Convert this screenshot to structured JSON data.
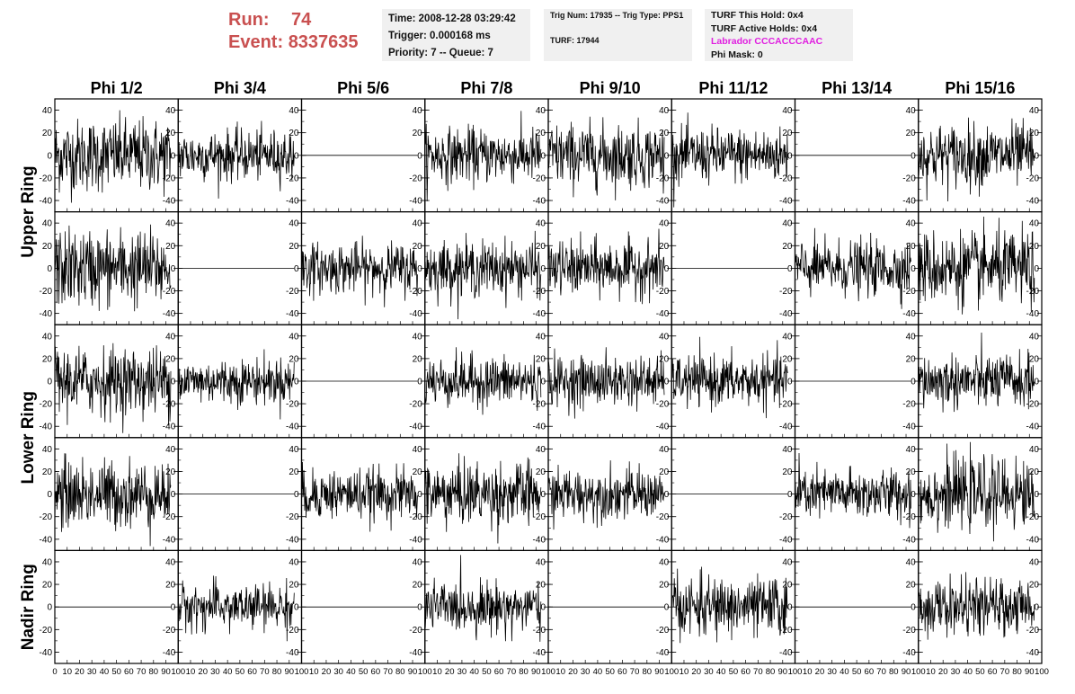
{
  "run": {
    "run_label": "Run:",
    "run_value": "74",
    "event_label": "Event:",
    "event_value": "8337635"
  },
  "header_box1": {
    "time": "Time: 2008-12-28 03:29:42",
    "trigger": "Trigger: 0.000168 ms",
    "priority": "Priority: 7 -- Queue: 7"
  },
  "header_box2": {
    "trig": "Trig Num: 17935 -- Trig Type: PPS1",
    "turf": "TURF: 17944"
  },
  "header_box3": {
    "hold": "TURF This Hold: 0x4",
    "active": "TURF Active Holds: 0x4",
    "labrador": "Labrador CCCACCCAAC",
    "phimask": "Phi Mask: 0"
  },
  "colors": {
    "accent": "#c95050",
    "labrador": "#e020e0",
    "panel_bg": "#f0f0f0",
    "trace": "#000000"
  },
  "chart_data": {
    "type": "line",
    "columns": [
      "Phi 1/2",
      "Phi 3/4",
      "Phi 5/6",
      "Phi 7/8",
      "Phi 9/10",
      "Phi 11/12",
      "Phi 13/14",
      "Phi 15/16"
    ],
    "ring_labels": [
      {
        "text": "Upper Ring",
        "rows": [
          0,
          1
        ]
      },
      {
        "text": "Lower Ring",
        "rows": [
          2,
          3
        ]
      },
      {
        "text": "Nadir Ring",
        "rows": [
          4
        ]
      }
    ],
    "xlim": [
      0,
      100
    ],
    "ylim": [
      -50,
      50
    ],
    "y_ticks": [
      -40,
      -20,
      0,
      20,
      40
    ],
    "x_ticks": [
      0,
      10,
      20,
      30,
      40,
      50,
      60,
      70,
      80,
      90,
      100
    ],
    "x_tick_labels": [
      "0",
      "10",
      "20",
      "30",
      "40",
      "50",
      "60",
      "70",
      "80",
      "90",
      "100"
    ],
    "y_tick_labels": [
      "-40",
      "-20",
      "0",
      "20",
      "40"
    ],
    "n_samples": 260,
    "x_end": 94,
    "amplitude_note": "each active panel shows a noise waveform of 260 samples with peaks up to ~45 mV",
    "active": [
      [
        1,
        1,
        0,
        1,
        1,
        1,
        0,
        1
      ],
      [
        1,
        0,
        1,
        1,
        1,
        0,
        1,
        1
      ],
      [
        1,
        1,
        0,
        1,
        1,
        1,
        0,
        1
      ],
      [
        1,
        0,
        1,
        1,
        1,
        0,
        1,
        1
      ],
      [
        0,
        1,
        0,
        1,
        0,
        1,
        0,
        1
      ]
    ],
    "amplitude": [
      [
        16,
        11,
        0,
        12,
        14,
        12,
        0,
        14
      ],
      [
        17,
        0,
        11,
        12,
        12,
        0,
        12,
        16
      ],
      [
        15,
        10,
        0,
        11,
        11,
        11,
        0,
        12
      ],
      [
        15,
        0,
        11,
        14,
        11,
        0,
        11,
        15
      ],
      [
        0,
        10,
        0,
        11,
        0,
        13,
        0,
        12
      ]
    ]
  }
}
